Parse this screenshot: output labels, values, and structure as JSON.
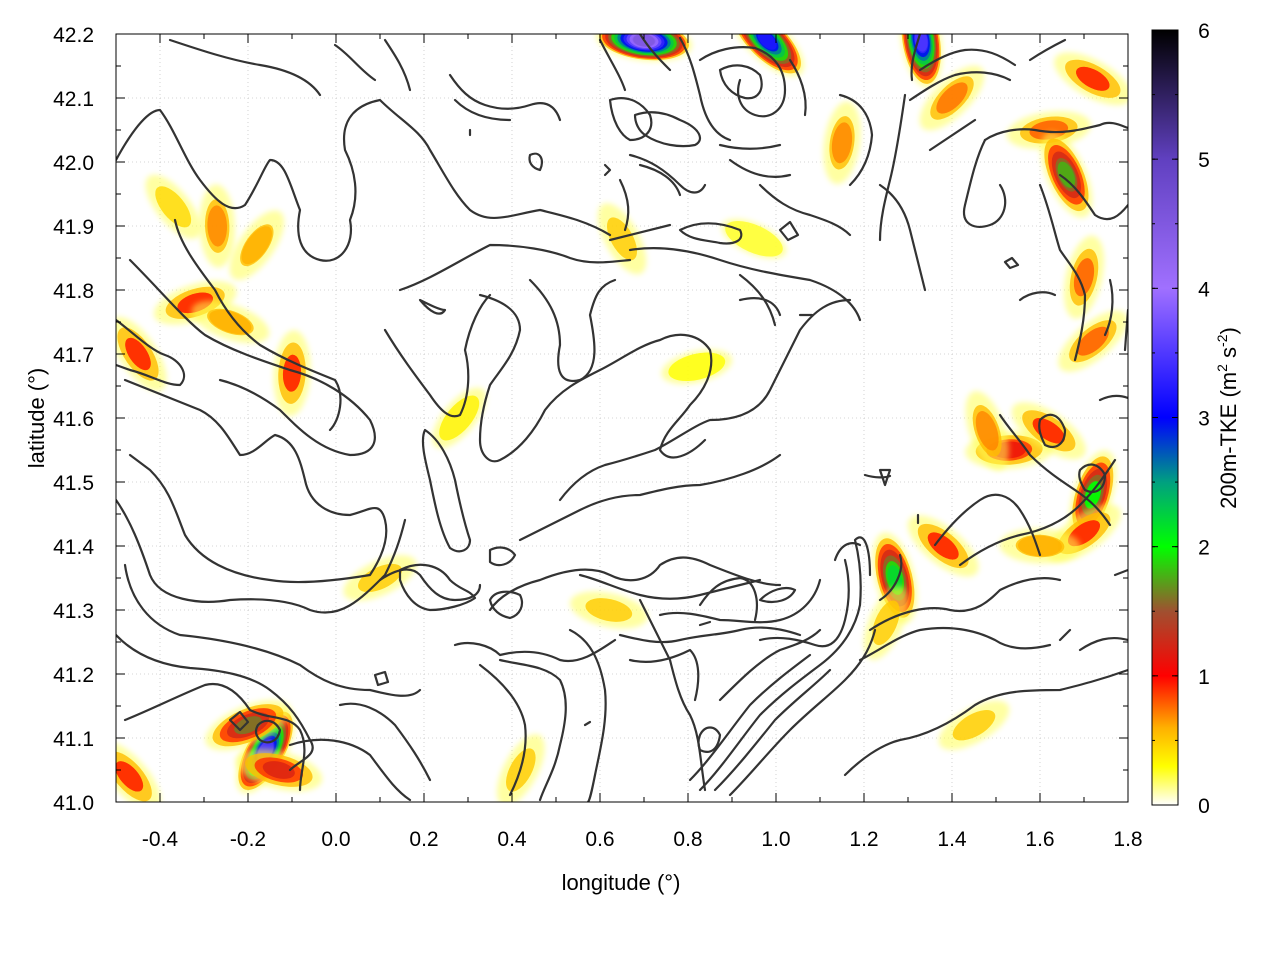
{
  "chart_data": {
    "type": "heatmap",
    "title": "",
    "xlabel": "longitude (°)",
    "ylabel": "latitude (°)",
    "colorbar_label": {
      "base": "200m-TKE (m",
      "sup1": "2",
      "mid": " s",
      "sup2": "-2",
      "end": ")"
    },
    "xlim": [
      -0.5,
      1.8
    ],
    "ylim": [
      41.0,
      42.2
    ],
    "zlim": [
      0,
      6
    ],
    "x_ticks": [
      -0.4,
      -0.2,
      0.0,
      0.2,
      0.4,
      0.6,
      0.8,
      1.0,
      1.2,
      1.4,
      1.6,
      1.8
    ],
    "x_tick_labels": [
      "-0.4",
      "-0.2",
      "0.0",
      "0.2",
      "0.4",
      "0.6",
      "0.8",
      "1.0",
      "1.2",
      "1.4",
      "1.6",
      "1.8"
    ],
    "y_ticks": [
      41.0,
      41.1,
      41.2,
      41.3,
      41.4,
      41.5,
      41.6,
      41.7,
      41.8,
      41.9,
      42.0,
      42.1,
      42.2
    ],
    "y_tick_labels": [
      "41.0",
      "41.1",
      "41.2",
      "41.3",
      "41.4",
      "41.5",
      "41.6",
      "41.7",
      "41.8",
      "41.9",
      "42.0",
      "42.1",
      "42.2"
    ],
    "colorbar_ticks": [
      0,
      1,
      2,
      3,
      4,
      5,
      6
    ],
    "colorbar_tick_labels": [
      "0",
      "1",
      "2",
      "3",
      "4",
      "5",
      "6"
    ],
    "colormap": [
      {
        "value": 0.0,
        "color": "#ffffff"
      },
      {
        "value": 0.3,
        "color": "#ffff00"
      },
      {
        "value": 0.6,
        "color": "#ffb000"
      },
      {
        "value": 1.0,
        "color": "#ff0000"
      },
      {
        "value": 1.5,
        "color": "#a05030"
      },
      {
        "value": 2.0,
        "color": "#00ff00"
      },
      {
        "value": 2.5,
        "color": "#00a080"
      },
      {
        "value": 3.0,
        "color": "#0000ff"
      },
      {
        "value": 4.0,
        "color": "#a070ff"
      },
      {
        "value": 5.0,
        "color": "#6040c0"
      },
      {
        "value": 6.0,
        "color": "#000000"
      }
    ],
    "grid": true,
    "contour_color": "#333333",
    "tke_hotspots": [
      {
        "lon": -0.16,
        "lat": 41.08,
        "value": 3.5
      },
      {
        "lon": -0.2,
        "lat": 41.12,
        "value": 1.6
      },
      {
        "lon": -0.13,
        "lat": 41.05,
        "value": 1.2
      },
      {
        "lon": -0.37,
        "lat": 41.93,
        "value": 0.45
      },
      {
        "lon": -0.27,
        "lat": 41.9,
        "value": 0.7
      },
      {
        "lon": -0.18,
        "lat": 41.87,
        "value": 0.6
      },
      {
        "lon": -0.32,
        "lat": 41.78,
        "value": 0.9
      },
      {
        "lon": -0.24,
        "lat": 41.75,
        "value": 0.6
      },
      {
        "lon": -0.45,
        "lat": 41.7,
        "value": 0.9
      },
      {
        "lon": -0.1,
        "lat": 41.67,
        "value": 0.9
      },
      {
        "lon": 0.28,
        "lat": 41.6,
        "value": 0.35
      },
      {
        "lon": 0.82,
        "lat": 41.68,
        "value": 0.3
      },
      {
        "lon": 0.95,
        "lat": 41.88,
        "value": 0.25
      },
      {
        "lon": 0.65,
        "lat": 41.88,
        "value": 0.5
      },
      {
        "lon": 1.15,
        "lat": 42.03,
        "value": 0.7
      },
      {
        "lon": 1.4,
        "lat": 42.1,
        "value": 0.75
      },
      {
        "lon": 1.62,
        "lat": 42.05,
        "value": 0.8
      },
      {
        "lon": 1.72,
        "lat": 42.13,
        "value": 0.9
      },
      {
        "lon": 1.66,
        "lat": 41.98,
        "value": 1.8
      },
      {
        "lon": 1.7,
        "lat": 41.82,
        "value": 0.8
      },
      {
        "lon": 1.72,
        "lat": 41.72,
        "value": 0.8
      },
      {
        "lon": 1.53,
        "lat": 41.55,
        "value": 1.1
      },
      {
        "lon": 1.62,
        "lat": 41.58,
        "value": 0.9
      },
      {
        "lon": 1.48,
        "lat": 41.58,
        "value": 0.7
      },
      {
        "lon": 1.72,
        "lat": 41.48,
        "value": 2.0
      },
      {
        "lon": 1.7,
        "lat": 41.42,
        "value": 0.9
      },
      {
        "lon": 1.6,
        "lat": 41.4,
        "value": 0.6
      },
      {
        "lon": 1.38,
        "lat": 41.4,
        "value": 0.9
      },
      {
        "lon": 1.27,
        "lat": 41.35,
        "value": 2.2
      },
      {
        "lon": 1.25,
        "lat": 41.28,
        "value": 0.5
      },
      {
        "lon": 1.45,
        "lat": 41.12,
        "value": 0.5
      },
      {
        "lon": 0.7,
        "lat": 42.19,
        "value": 4.5
      },
      {
        "lon": 0.98,
        "lat": 42.19,
        "value": 3.2
      },
      {
        "lon": 1.33,
        "lat": 42.19,
        "value": 3.5
      },
      {
        "lon": 0.42,
        "lat": 41.05,
        "value": 0.5
      },
      {
        "lon": 0.1,
        "lat": 41.35,
        "value": 0.5
      },
      {
        "lon": 0.62,
        "lat": 41.3,
        "value": 0.5
      },
      {
        "lon": -0.47,
        "lat": 41.04,
        "value": 0.9
      }
    ]
  }
}
